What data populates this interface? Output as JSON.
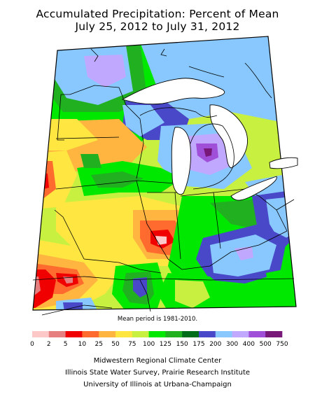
{
  "title_line1": "Accumulated Precipitation: Percent of Mean",
  "title_line2": "July 25, 2012 to July 31, 2012",
  "mean_note": "Mean period is 1981-2010.",
  "legend": {
    "colors": [
      "#ffc8c8",
      "#e68080",
      "#f00000",
      "#ff6a2e",
      "#ffb540",
      "#ffe640",
      "#c8f040",
      "#00e800",
      "#20b020",
      "#006e18",
      "#4848c8",
      "#88c8ff",
      "#c0a8ff",
      "#a050d8",
      "#781878"
    ],
    "labels": [
      "0",
      "2",
      "5",
      "10",
      "25",
      "50",
      "75",
      "100",
      "125",
      "150",
      "175",
      "200",
      "300",
      "400",
      "500",
      "750"
    ]
  },
  "credits": [
    "Midwestern Regional Climate Center",
    "Illinois State Water Survey, Prairie Research Institute",
    "University of Illinois at Urbana-Champaign"
  ]
}
